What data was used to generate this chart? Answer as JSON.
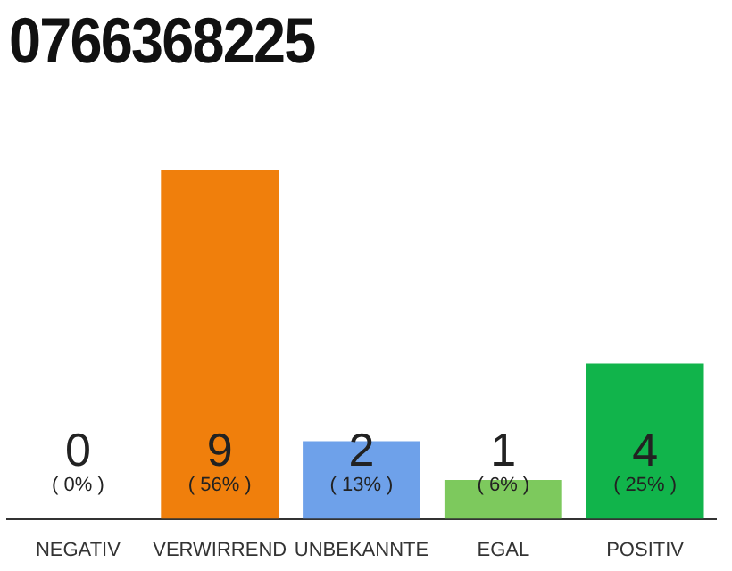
{
  "chart_data": {
    "type": "bar",
    "title": "0766368225",
    "categories": [
      "NEGATIV",
      "VERWIRREND",
      "UNBEKANNTE",
      "EGAL",
      "POSITIV"
    ],
    "values": [
      0,
      9,
      2,
      1,
      4
    ],
    "colors": [
      "#d9d9d9",
      "#f07f0c",
      "#6ea1ea",
      "#7dc95d",
      "#11b44b"
    ],
    "data_labels": true,
    "annotations": [
      "( 0% )",
      "( 56% )",
      "( 13% )",
      "( 6% )",
      "( 25% )"
    ],
    "legend": false
  }
}
